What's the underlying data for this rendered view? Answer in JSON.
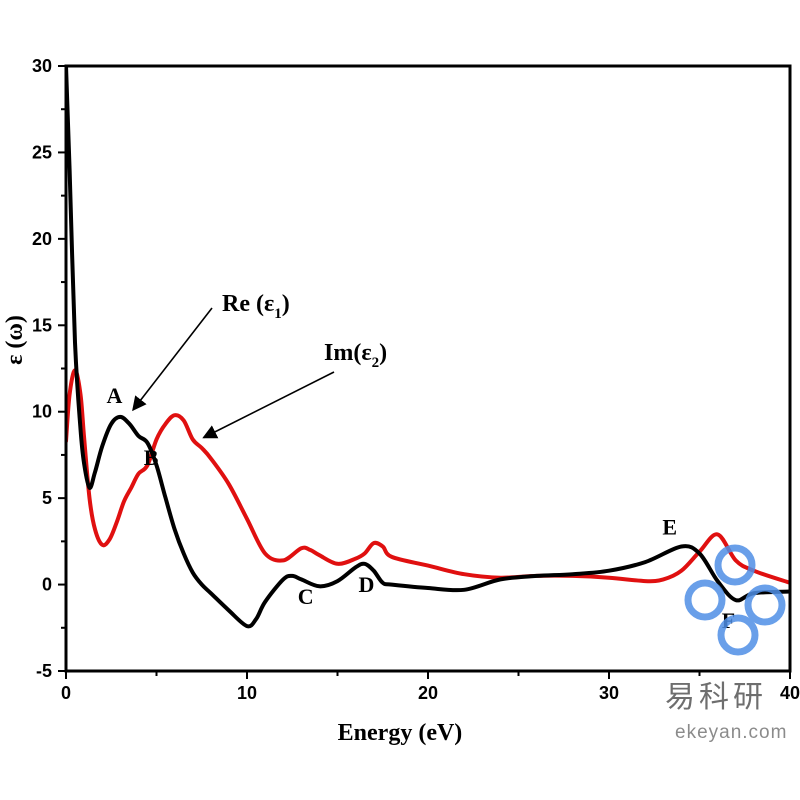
{
  "chart_data": {
    "type": "line",
    "xlabel": "Energy (eV)",
    "ylabel": "ε (ω)",
    "xlim": [
      0,
      40
    ],
    "ylim": [
      -5,
      30
    ],
    "xticks": [
      0,
      10,
      20,
      30,
      40
    ],
    "yticks": [
      -5,
      0,
      5,
      10,
      15,
      20,
      25,
      30
    ],
    "grid": false,
    "series": [
      {
        "name": "Re (ε1)",
        "color": "#000000",
        "x": [
          0.0,
          0.2,
          0.5,
          0.8,
          1.0,
          1.3,
          1.6,
          2.0,
          2.5,
          3.0,
          3.5,
          4.0,
          4.5,
          5.0,
          5.5,
          6.0,
          6.5,
          7.0,
          7.5,
          8.0,
          9.0,
          10.0,
          10.5,
          11.0,
          12.0,
          12.5,
          13.0,
          14.0,
          15.0,
          16.0,
          16.5,
          17.0,
          17.5,
          18.0,
          20.0,
          22.0,
          24.0,
          26.0,
          28.0,
          30.0,
          32.0,
          34.0,
          35.0,
          36.0,
          37.0,
          38.0,
          40.0
        ],
        "y": [
          30.0,
          24.0,
          14.0,
          9.0,
          7.0,
          5.6,
          6.5,
          8.0,
          9.3,
          9.7,
          9.3,
          8.6,
          8.2,
          6.9,
          5.0,
          3.2,
          1.8,
          0.7,
          0.0,
          -0.5,
          -1.5,
          -2.4,
          -2.0,
          -1.0,
          0.3,
          0.5,
          0.3,
          -0.1,
          0.2,
          1.0,
          1.2,
          0.8,
          0.1,
          0.0,
          -0.2,
          -0.3,
          0.3,
          0.5,
          0.6,
          0.8,
          1.3,
          2.2,
          1.8,
          0.2,
          -0.9,
          -0.5,
          -0.4
        ]
      },
      {
        "name": "Im(ε2)",
        "color": "#e01010",
        "x": [
          0.0,
          0.2,
          0.5,
          0.8,
          1.0,
          1.3,
          1.6,
          2.0,
          2.4,
          2.8,
          3.2,
          3.6,
          4.0,
          4.5,
          5.0,
          5.5,
          6.0,
          6.5,
          7.0,
          7.5,
          8.0,
          9.0,
          10.0,
          11.0,
          12.0,
          13.0,
          13.5,
          14.0,
          15.0,
          16.0,
          16.5,
          17.0,
          17.5,
          18.0,
          20.0,
          22.0,
          24.0,
          26.0,
          28.0,
          30.0,
          32.0,
          33.0,
          34.0,
          35.0,
          36.0,
          37.0,
          38.0,
          40.0
        ],
        "y": [
          8.3,
          11.0,
          12.4,
          11.0,
          8.5,
          5.0,
          3.2,
          2.3,
          2.6,
          3.6,
          4.8,
          5.6,
          6.4,
          6.9,
          8.4,
          9.3,
          9.8,
          9.5,
          8.4,
          7.9,
          7.3,
          5.8,
          3.8,
          1.8,
          1.4,
          2.1,
          2.0,
          1.7,
          1.2,
          1.5,
          1.8,
          2.4,
          2.2,
          1.6,
          1.1,
          0.6,
          0.4,
          0.5,
          0.5,
          0.4,
          0.2,
          0.3,
          0.8,
          1.9,
          2.9,
          1.4,
          0.8,
          0.1
        ]
      }
    ],
    "peak_labels": [
      {
        "text": "A",
        "x": 2.9,
        "y": 9.7
      },
      {
        "text": "B",
        "x": 4.7,
        "y": 8.2
      },
      {
        "text": "C",
        "x": 12.8,
        "y": 0.5
      },
      {
        "text": "D",
        "x": 16.6,
        "y": 1.2
      },
      {
        "text": "E",
        "x": 33.8,
        "y": 2.2
      },
      {
        "text": "F",
        "x": 36.6,
        "y": -0.9
      }
    ],
    "annotations": [
      {
        "text_main": "Re (ε",
        "text_sub": "1",
        "text_end": ")",
        "series": "Re (ε1)",
        "arrow_to": [
          3.7,
          10.1
        ]
      },
      {
        "text_main": "Im(ε",
        "text_sub": "2",
        "text_end": ")",
        "series": "Im(ε2)",
        "arrow_to": [
          7.6,
          8.5
        ]
      }
    ]
  },
  "watermark": {
    "chinese_text": "易科研",
    "url_text": "ekeyan.com",
    "logo_color": "#4f8fe6"
  }
}
